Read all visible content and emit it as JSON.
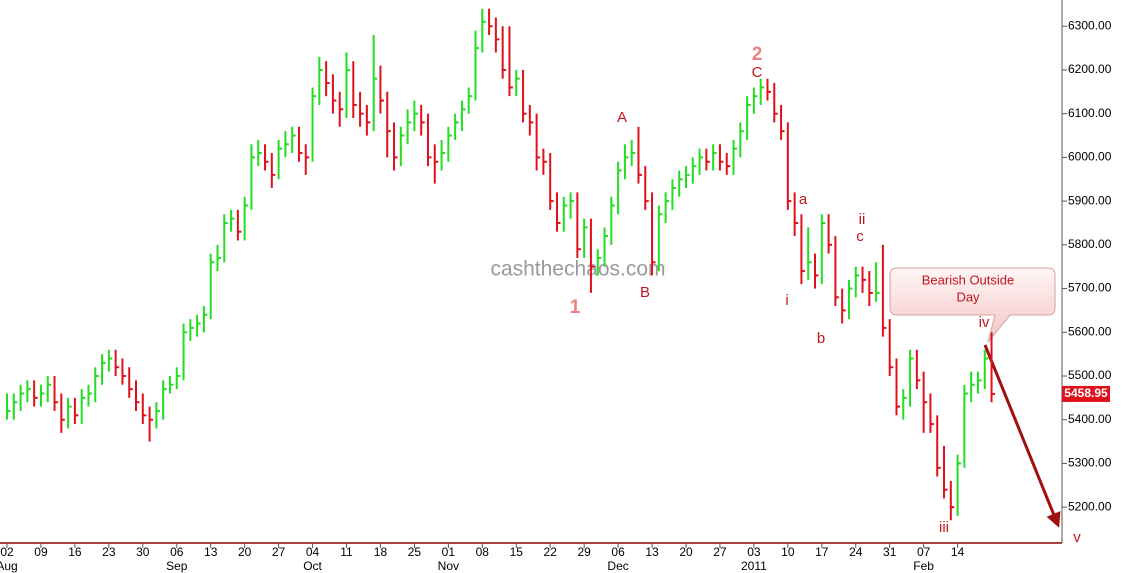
{
  "chart_data": {
    "type": "ohlc",
    "ylim": [
      5118,
      6360
    ],
    "yticks": [
      {
        "value": 5200,
        "label": "5200.00"
      },
      {
        "value": 5300,
        "label": "5300.00"
      },
      {
        "value": 5400,
        "label": "5400.00"
      },
      {
        "value": 5500,
        "label": "5500.00"
      },
      {
        "value": 5600,
        "label": "5600.00"
      },
      {
        "value": 5700,
        "label": "5700.00"
      },
      {
        "value": 5800,
        "label": "5800.00"
      },
      {
        "value": 5900,
        "label": "5900.00"
      },
      {
        "value": 6000,
        "label": "6000.00"
      },
      {
        "value": 6100,
        "label": "6100.00"
      },
      {
        "value": 6200,
        "label": "6200.00"
      },
      {
        "value": 6300,
        "label": "6300.00"
      }
    ],
    "xticks": [
      {
        "value": 0,
        "label": "02"
      },
      {
        "value": 5,
        "label": "09"
      },
      {
        "value": 10,
        "label": "16"
      },
      {
        "value": 15,
        "label": "23"
      },
      {
        "value": 20,
        "label": "30"
      },
      {
        "value": 25,
        "label": "06"
      },
      {
        "value": 30,
        "label": "13"
      },
      {
        "value": 35,
        "label": "20"
      },
      {
        "value": 40,
        "label": "27"
      },
      {
        "value": 45,
        "label": "04"
      },
      {
        "value": 50,
        "label": "11"
      },
      {
        "value": 55,
        "label": "18"
      },
      {
        "value": 60,
        "label": "25"
      },
      {
        "value": 65,
        "label": "01"
      },
      {
        "value": 70,
        "label": "08"
      },
      {
        "value": 75,
        "label": "15"
      },
      {
        "value": 80,
        "label": "22"
      },
      {
        "value": 85,
        "label": "29"
      },
      {
        "value": 90,
        "label": "06"
      },
      {
        "value": 95,
        "label": "13"
      },
      {
        "value": 100,
        "label": "20"
      },
      {
        "value": 105,
        "label": "27"
      },
      {
        "value": 110,
        "label": "03"
      },
      {
        "value": 115,
        "label": "10"
      },
      {
        "value": 120,
        "label": "17"
      },
      {
        "value": 125,
        "label": "24"
      },
      {
        "value": 130,
        "label": "31"
      },
      {
        "value": 135,
        "label": "07"
      },
      {
        "value": 140,
        "label": "14"
      }
    ],
    "months": [
      {
        "value": 0,
        "label": "Aug"
      },
      {
        "value": 25,
        "label": "Sep"
      },
      {
        "value": 45,
        "label": "Oct"
      },
      {
        "value": 65,
        "label": "Nov"
      },
      {
        "value": 90,
        "label": "Dec"
      },
      {
        "value": 110,
        "label": "2011"
      },
      {
        "value": 135,
        "label": "Feb"
      }
    ],
    "up_color": "#22dd22",
    "down_color": "#e0101a",
    "high": [
      5460,
      5460,
      5480,
      5490,
      5490,
      5480,
      5500,
      5500,
      5460,
      5450,
      5450,
      5470,
      5480,
      5520,
      5550,
      5560,
      5560,
      5540,
      5520,
      5490,
      5460,
      5430,
      5440,
      5490,
      5500,
      5520,
      5620,
      5630,
      5640,
      5660,
      5780,
      5800,
      5870,
      5880,
      5880,
      5910,
      6030,
      6040,
      6030,
      6010,
      6040,
      6060,
      6070,
      6070,
      6030,
      6160,
      6230,
      6220,
      6190,
      6150,
      6240,
      6220,
      6150,
      6120,
      6280,
      6210,
      6150,
      6080,
      6070,
      6110,
      6130,
      6120,
      6100,
      6030,
      6040,
      6070,
      6100,
      6130,
      6160,
      6290,
      6340,
      6340,
      6320,
      6300,
      6300,
      6200,
      6200,
      6120,
      6100,
      6020,
      6010,
      5920,
      5910,
      5920,
      5920,
      5860,
      5860,
      5790,
      5840,
      5910,
      5990,
      6030,
      6040,
      6070,
      5980,
      5920,
      5890,
      5920,
      5950,
      5970,
      5980,
      6000,
      6020,
      6020,
      6030,
      6030,
      6010,
      6040,
      6080,
      6140,
      6160,
      6180,
      6180,
      6170,
      6120,
      6080,
      5920,
      5870,
      5840,
      5780,
      5870,
      5870,
      5820,
      5700,
      5720,
      5750,
      5750,
      5740,
      5760,
      5800,
      5630,
      5540,
      5470,
      5560,
      5560,
      5510,
      5460,
      5410,
      5340,
      5260,
      5320,
      5480,
      5510,
      5510,
      5560,
      5600
    ],
    "low": [
      5400,
      5400,
      5420,
      5440,
      5430,
      5430,
      5440,
      5420,
      5370,
      5380,
      5390,
      5390,
      5430,
      5440,
      5480,
      5510,
      5500,
      5480,
      5450,
      5420,
      5390,
      5350,
      5380,
      5400,
      5460,
      5470,
      5490,
      5580,
      5590,
      5600,
      5630,
      5740,
      5760,
      5830,
      5810,
      5810,
      5880,
      5980,
      5970,
      5930,
      5950,
      6000,
      6010,
      5990,
      5960,
      5990,
      6120,
      6140,
      6100,
      6070,
      6090,
      6090,
      6070,
      6050,
      6060,
      6100,
      6000,
      5970,
      5980,
      6030,
      6060,
      6050,
      5980,
      5940,
      5970,
      5990,
      6040,
      6060,
      6100,
      6130,
      6240,
      6280,
      6240,
      6180,
      6140,
      6140,
      6080,
      6050,
      5970,
      5960,
      5880,
      5830,
      5830,
      5860,
      5770,
      5770,
      5690,
      5730,
      5750,
      5800,
      5870,
      5950,
      5980,
      5940,
      5880,
      5730,
      5740,
      5850,
      5880,
      5910,
      5930,
      5940,
      5960,
      5970,
      5970,
      5970,
      5960,
      5960,
      6000,
      6040,
      6100,
      6120,
      6130,
      6080,
      6040,
      5880,
      5820,
      5710,
      5720,
      5700,
      5710,
      5780,
      5660,
      5620,
      5630,
      5680,
      5690,
      5660,
      5670,
      5590,
      5500,
      5410,
      5400,
      5430,
      5470,
      5370,
      5370,
      5270,
      5220,
      5170,
      5180,
      5290,
      5440,
      5460,
      5470,
      5440
    ],
    "close": [
      5420,
      5440,
      5460,
      5470,
      5450,
      5460,
      5480,
      5440,
      5400,
      5430,
      5410,
      5450,
      5460,
      5500,
      5530,
      5540,
      5520,
      5500,
      5470,
      5440,
      5410,
      5400,
      5420,
      5470,
      5480,
      5500,
      5600,
      5610,
      5620,
      5640,
      5760,
      5770,
      5850,
      5860,
      5830,
      5890,
      6000,
      6010,
      5990,
      5960,
      6020,
      6030,
      6050,
      6010,
      6000,
      6140,
      6200,
      6170,
      6130,
      6110,
      6200,
      6120,
      6100,
      6080,
      6180,
      6130,
      6060,
      6000,
      6050,
      6080,
      6100,
      6080,
      6000,
      5990,
      6010,
      6050,
      6080,
      6110,
      6140,
      6250,
      6310,
      6300,
      6270,
      6200,
      6160,
      6180,
      6100,
      6080,
      6000,
      5990,
      5900,
      5850,
      5890,
      5900,
      5790,
      5840,
      5750,
      5770,
      5820,
      5890,
      5970,
      6000,
      6010,
      5960,
      5900,
      5760,
      5870,
      5900,
      5930,
      5950,
      5960,
      5980,
      6000,
      5990,
      6010,
      5990,
      5980,
      6020,
      6060,
      6120,
      6140,
      6160,
      6150,
      6100,
      6060,
      5900,
      5850,
      5740,
      5760,
      5730,
      5850,
      5800,
      5680,
      5650,
      5700,
      5730,
      5720,
      5690,
      5690,
      5610,
      5520,
      5430,
      5450,
      5540,
      5490,
      5440,
      5390,
      5290,
      5240,
      5200,
      5300,
      5460,
      5480,
      5490,
      5540,
      5458.95
    ],
    "watermark": "cashthechaos.com",
    "annotations": [
      "1",
      "2",
      "A",
      "B",
      "C",
      "i",
      "a",
      "b",
      "c",
      "ii",
      "iii",
      "iv",
      "v"
    ],
    "callout": [
      "Bearish Outside",
      "Day"
    ]
  }
}
